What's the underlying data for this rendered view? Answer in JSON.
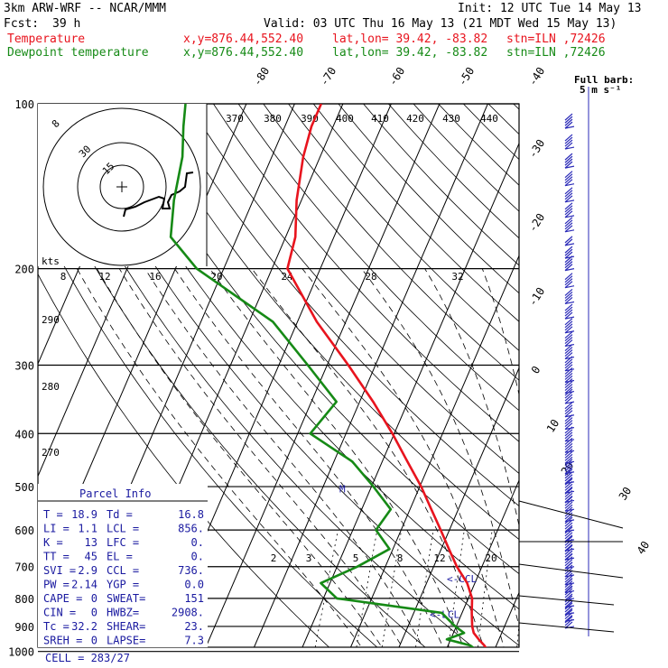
{
  "header": {
    "model": "3km ARW-WRF -- NCAR/MMM",
    "init": "Init: 12 UTC Tue 14 May 13",
    "fcst_label": "Fcst:",
    "fcst_value": "39 h",
    "valid": "Valid: 03 UTC Thu 16 May 13 (21 MDT Wed 15 May 13)",
    "temp_line": {
      "name": "Temperature",
      "xy": "x,y=876.44,552.40",
      "latlon": "lat,lon= 39.42, -83.82",
      "stn": "stn=ILN ,72426"
    },
    "dew_line": {
      "name": "Dewpoint temperature",
      "xy": "x,y=876.44,552.40",
      "latlon": "lat,lon= 39.42, -83.82",
      "stn": "stn=ILN ,72426"
    }
  },
  "colors": {
    "temperature": "#e8141e",
    "dewpoint": "#168a16",
    "wind": "#2b2bb8",
    "parcel": "#1a1aa0",
    "grid": "#000000"
  },
  "chart_data": {
    "type": "skew-t",
    "pressure_levels": [
      100,
      200,
      300,
      400,
      500,
      600,
      700,
      800,
      900,
      1000
    ],
    "isotherm_labels": [
      "-80",
      "-70",
      "-60",
      "-50",
      "-40",
      "-30",
      "-20",
      "-10",
      "0",
      "10",
      "20",
      "30",
      "40"
    ],
    "theta_labels": [
      "370",
      "380",
      "390",
      "400",
      "410",
      "420",
      "430",
      "440"
    ],
    "theta_left_labels": [
      "290",
      "280",
      "270"
    ],
    "mixing_ratio_labels": [
      "2",
      "3",
      "5",
      "8",
      "12",
      "20"
    ],
    "hodo_speed_labels": [
      "8",
      "12",
      "16",
      "20",
      "24",
      "28",
      "32"
    ],
    "hodo_ring_labels": [
      "8",
      "30",
      "15"
    ],
    "kts_label": "kts",
    "full_barb_label": "Full barb:",
    "full_barb_value": "5 m s⁻¹",
    "temperature": [
      {
        "p": 1000,
        "t": 18.9
      },
      {
        "p": 975,
        "t": 17.5
      },
      {
        "p": 950,
        "t": 15.8
      },
      {
        "p": 925,
        "t": 14.2
      },
      {
        "p": 900,
        "t": 13.3
      },
      {
        "p": 850,
        "t": 12.0
      },
      {
        "p": 800,
        "t": 10.8
      },
      {
        "p": 750,
        "t": 8.4
      },
      {
        "p": 700,
        "t": 4.8
      },
      {
        "p": 650,
        "t": 1.6
      },
      {
        "p": 600,
        "t": -1.8
      },
      {
        "p": 550,
        "t": -5.6
      },
      {
        "p": 500,
        "t": -9.7
      },
      {
        "p": 450,
        "t": -14.8
      },
      {
        "p": 400,
        "t": -20.4
      },
      {
        "p": 350,
        "t": -27.2
      },
      {
        "p": 300,
        "t": -35.6
      },
      {
        "p": 250,
        "t": -46.0
      },
      {
        "p": 200,
        "t": -56.8
      },
      {
        "p": 175,
        "t": -58.0
      },
      {
        "p": 150,
        "t": -61.0
      },
      {
        "p": 125,
        "t": -63.5
      },
      {
        "p": 110,
        "t": -64.5
      },
      {
        "p": 100,
        "t": -64.5
      }
    ],
    "dewpoint": [
      {
        "p": 1000,
        "t": 16.8
      },
      {
        "p": 975,
        "t": 14.6
      },
      {
        "p": 950,
        "t": 9.2
      },
      {
        "p": 925,
        "t": 12.2
      },
      {
        "p": 900,
        "t": 9.8
      },
      {
        "p": 850,
        "t": 5.8
      },
      {
        "p": 800,
        "t": -17.2
      },
      {
        "p": 750,
        "t": -21.9
      },
      {
        "p": 700,
        "t": -15.8
      },
      {
        "p": 650,
        "t": -10.7
      },
      {
        "p": 600,
        "t": -15.2
      },
      {
        "p": 550,
        "t": -14.0
      },
      {
        "p": 500,
        "t": -19.6
      },
      {
        "p": 450,
        "t": -26.2
      },
      {
        "p": 400,
        "t": -37.4
      },
      {
        "p": 350,
        "t": -34.8
      },
      {
        "p": 300,
        "t": -44.0
      },
      {
        "p": 250,
        "t": -55.1
      },
      {
        "p": 200,
        "t": -75.6
      },
      {
        "p": 175,
        "t": -83.8
      },
      {
        "p": 150,
        "t": -86.4
      },
      {
        "p": 125,
        "t": -88.5
      },
      {
        "p": 110,
        "t": -91.0
      },
      {
        "p": 100,
        "t": -92.6
      }
    ],
    "annotations": [
      {
        "text": "<-CCL",
        "p": 736
      },
      {
        "text": "<-LCL",
        "p": 856
      },
      {
        "text": "M",
        "p": 505
      }
    ],
    "wind_barb_pressures": [
      110,
      120,
      130,
      140,
      150,
      160,
      170,
      180,
      190,
      200,
      215,
      230,
      245,
      260,
      275,
      290,
      305,
      320,
      335,
      350,
      370,
      390,
      410,
      430,
      450,
      470,
      490,
      510,
      530,
      550,
      575,
      600,
      625,
      650,
      675,
      700,
      725,
      750,
      775,
      800,
      825,
      850,
      875,
      900
    ],
    "wind_barb_flags": [
      4,
      4,
      4,
      4,
      4,
      4,
      4,
      2,
      3,
      4,
      4,
      4,
      4,
      4,
      4,
      4,
      4,
      4,
      4,
      4,
      4,
      4,
      4,
      4,
      4,
      4,
      4,
      4,
      4,
      4,
      4,
      4,
      4,
      4,
      4,
      4,
      4,
      4,
      4,
      4,
      3,
      3,
      3,
      3
    ]
  },
  "parcel_info": {
    "title": "Parcel Info",
    "rows": [
      [
        "T  =",
        "18.9",
        "Td =",
        "16.8"
      ],
      [
        "LI =",
        "1.1",
        "LCL =",
        "856."
      ],
      [
        "K  =",
        "13",
        "LFC =",
        "0."
      ],
      [
        "TT =",
        "45",
        "EL =",
        "0."
      ],
      [
        "SVI =",
        "2.9",
        "CCL =",
        "736."
      ],
      [
        "PW =",
        "2.14",
        "YGP =",
        "0.0"
      ],
      [
        "CAPE =",
        "0",
        "SWEAT=",
        "151"
      ],
      [
        "CIN =",
        "0",
        "HWBZ=",
        "2908."
      ],
      [
        "Tc =",
        "32.2",
        "SHEAR=",
        "23."
      ],
      [
        "SREH =",
        "0",
        "LAPSE=",
        "7.3"
      ]
    ],
    "cell": "CELL = 283/27"
  }
}
